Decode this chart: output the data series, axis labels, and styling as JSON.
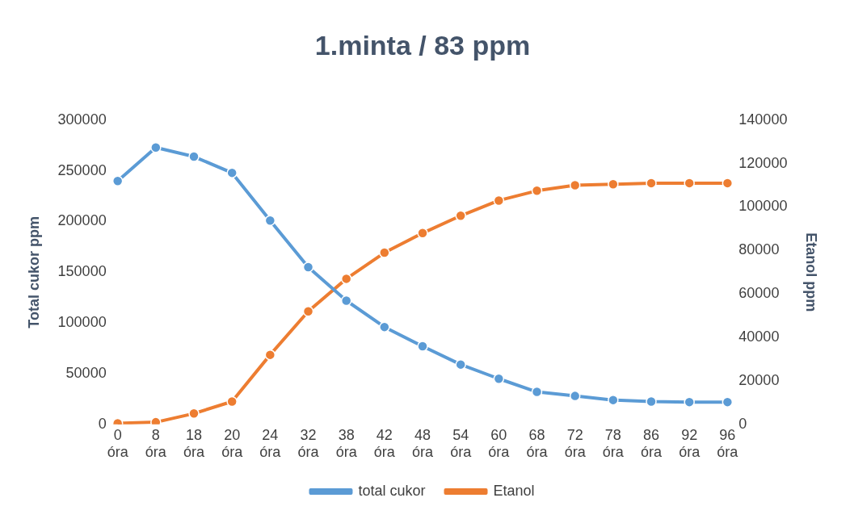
{
  "chart_data": {
    "type": "line",
    "title": "1.minta / 83 ppm",
    "ylabel": "Total cukor ppm",
    "y2label": "Etanol ppm",
    "categories": [
      "0 óra",
      "8 óra",
      "18 óra",
      "20 óra",
      "24 óra",
      "32 óra",
      "38 óra",
      "42 óra",
      "48 óra",
      "54 óra",
      "60 óra",
      "68 óra",
      "72 óra",
      "78 óra",
      "86 óra",
      "92 óra",
      "96 óra"
    ],
    "series": [
      {
        "name": "total cukor",
        "color": "#5b9bd5",
        "values": [
          240000,
          273000,
          264000,
          248000,
          201000,
          155000,
          122000,
          96000,
          77000,
          59000,
          45000,
          32000,
          28000,
          24000,
          22500,
          22000,
          22000
        ]
      },
      {
        "name": "Etanol",
        "color": "#ed7d31",
        "axis": "y2",
        "values": [
          500,
          1000,
          5000,
          10500,
          32000,
          52000,
          67000,
          79000,
          88000,
          96000,
          103000,
          107500,
          110000,
          110500,
          111000,
          111000,
          111000
        ]
      }
    ],
    "ylim": [
      0,
      300000
    ],
    "yticks": [
      0,
      50000,
      100000,
      150000,
      200000,
      250000,
      300000
    ],
    "y2lim": [
      0,
      140000
    ],
    "y2ticks": [
      0,
      20000,
      40000,
      60000,
      80000,
      100000,
      120000,
      140000
    ],
    "grid": false,
    "legend": "bottom",
    "marker": "circle",
    "line_style": "solid"
  }
}
